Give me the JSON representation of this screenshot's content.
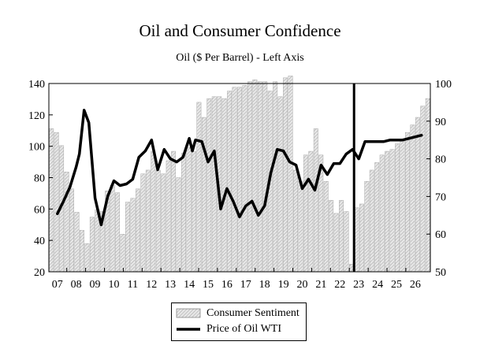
{
  "chart_data": {
    "type": "bar+line",
    "title": "Oil and Consumer Confidence",
    "subtitle": "Oil ($ Per Barrel) - Left Axis",
    "x_tick_labels": [
      "07",
      "08",
      "09",
      "10",
      "11",
      "12",
      "13",
      "14",
      "15",
      "16",
      "17",
      "18",
      "19",
      "20",
      "21",
      "22",
      "23",
      "24",
      "25",
      "26"
    ],
    "left_axis": {
      "ticks": [
        20,
        40,
        60,
        80,
        100,
        120,
        140
      ],
      "ylim": [
        20,
        140
      ]
    },
    "right_axis": {
      "ticks": [
        50,
        60,
        70,
        80,
        90,
        100
      ],
      "ylim": [
        50,
        100
      ]
    },
    "series": [
      {
        "name": "Consumer Sentiment",
        "type": "bar",
        "axis": "right",
        "values": [
          88.0,
          87.0,
          83.5,
          76.5,
          72.0,
          65.8,
          61.0,
          57.5,
          64.5,
          66.5,
          66.0,
          71.5,
          73.0,
          71.0,
          60.0,
          68.5,
          69.5,
          72.0,
          76.0,
          77.0,
          82.0,
          77.0,
          76.0,
          79.5,
          82.0,
          75.0,
          81.5,
          83.0,
          82.0,
          95.0,
          91.0,
          96.0,
          96.5,
          96.5,
          96.0,
          98.0,
          99.0,
          99.0,
          99.5,
          100.5,
          101.0,
          100.5,
          100.5,
          98.0,
          100.5,
          96.5,
          101.5,
          102.0,
          77.0,
          74.0,
          81.0,
          82.0,
          88.0,
          81.0,
          74.0,
          69.0,
          65.5,
          69.0,
          66.0,
          52.0,
          67.0,
          68.0,
          74.0,
          77.0,
          79.0,
          81.0,
          82.0,
          82.5,
          84.0,
          85.0,
          87.0,
          89.0,
          91.0,
          94.0,
          96.0
        ],
        "pattern": "hatched-gray"
      },
      {
        "name": "Price of Oil WTI",
        "type": "line",
        "axis": "left",
        "x": [
          2007.0,
          2007.33,
          2007.67,
          2008.0,
          2008.17,
          2008.42,
          2008.67,
          2009.0,
          2009.33,
          2009.67,
          2010.0,
          2010.33,
          2010.67,
          2011.0,
          2011.33,
          2011.67,
          2012.0,
          2012.33,
          2012.67,
          2013.0,
          2013.33,
          2013.67,
          2014.0,
          2014.17,
          2014.33,
          2014.67,
          2015.0,
          2015.33,
          2015.67,
          2016.0,
          2016.33,
          2016.67,
          2017.0,
          2017.33,
          2017.67,
          2018.0,
          2018.33,
          2018.67,
          2019.0,
          2019.33,
          2019.67,
          2020.0,
          2020.33,
          2020.67,
          2021.0,
          2021.33,
          2021.67,
          2022.0,
          2022.33,
          2022.67,
          2023.0,
          2023.33,
          2023.67,
          2024.0,
          2024.33,
          2024.67,
          2025.0,
          2025.33,
          2025.67,
          2026.0,
          2026.33
        ],
        "values": [
          57,
          65,
          74,
          87,
          95,
          123,
          115,
          67,
          50,
          68,
          78,
          75,
          76,
          79,
          93,
          97,
          104,
          85,
          98,
          92,
          90,
          93,
          105,
          97,
          104,
          103,
          90,
          97,
          60,
          73,
          65,
          55,
          62,
          65,
          56,
          62,
          83,
          98,
          97,
          90,
          88,
          73,
          79,
          72,
          88,
          82,
          89,
          89,
          95,
          98,
          92,
          103,
          103,
          103,
          103,
          104,
          104,
          104,
          105,
          106,
          107
        ]
      }
    ],
    "annotations": [
      {
        "type": "vertical-line",
        "x": 2022.75
      }
    ],
    "legend": {
      "position": "bottom-center",
      "entries": [
        "Consumer Sentiment",
        "Price of Oil WTI"
      ]
    },
    "grid": false
  }
}
